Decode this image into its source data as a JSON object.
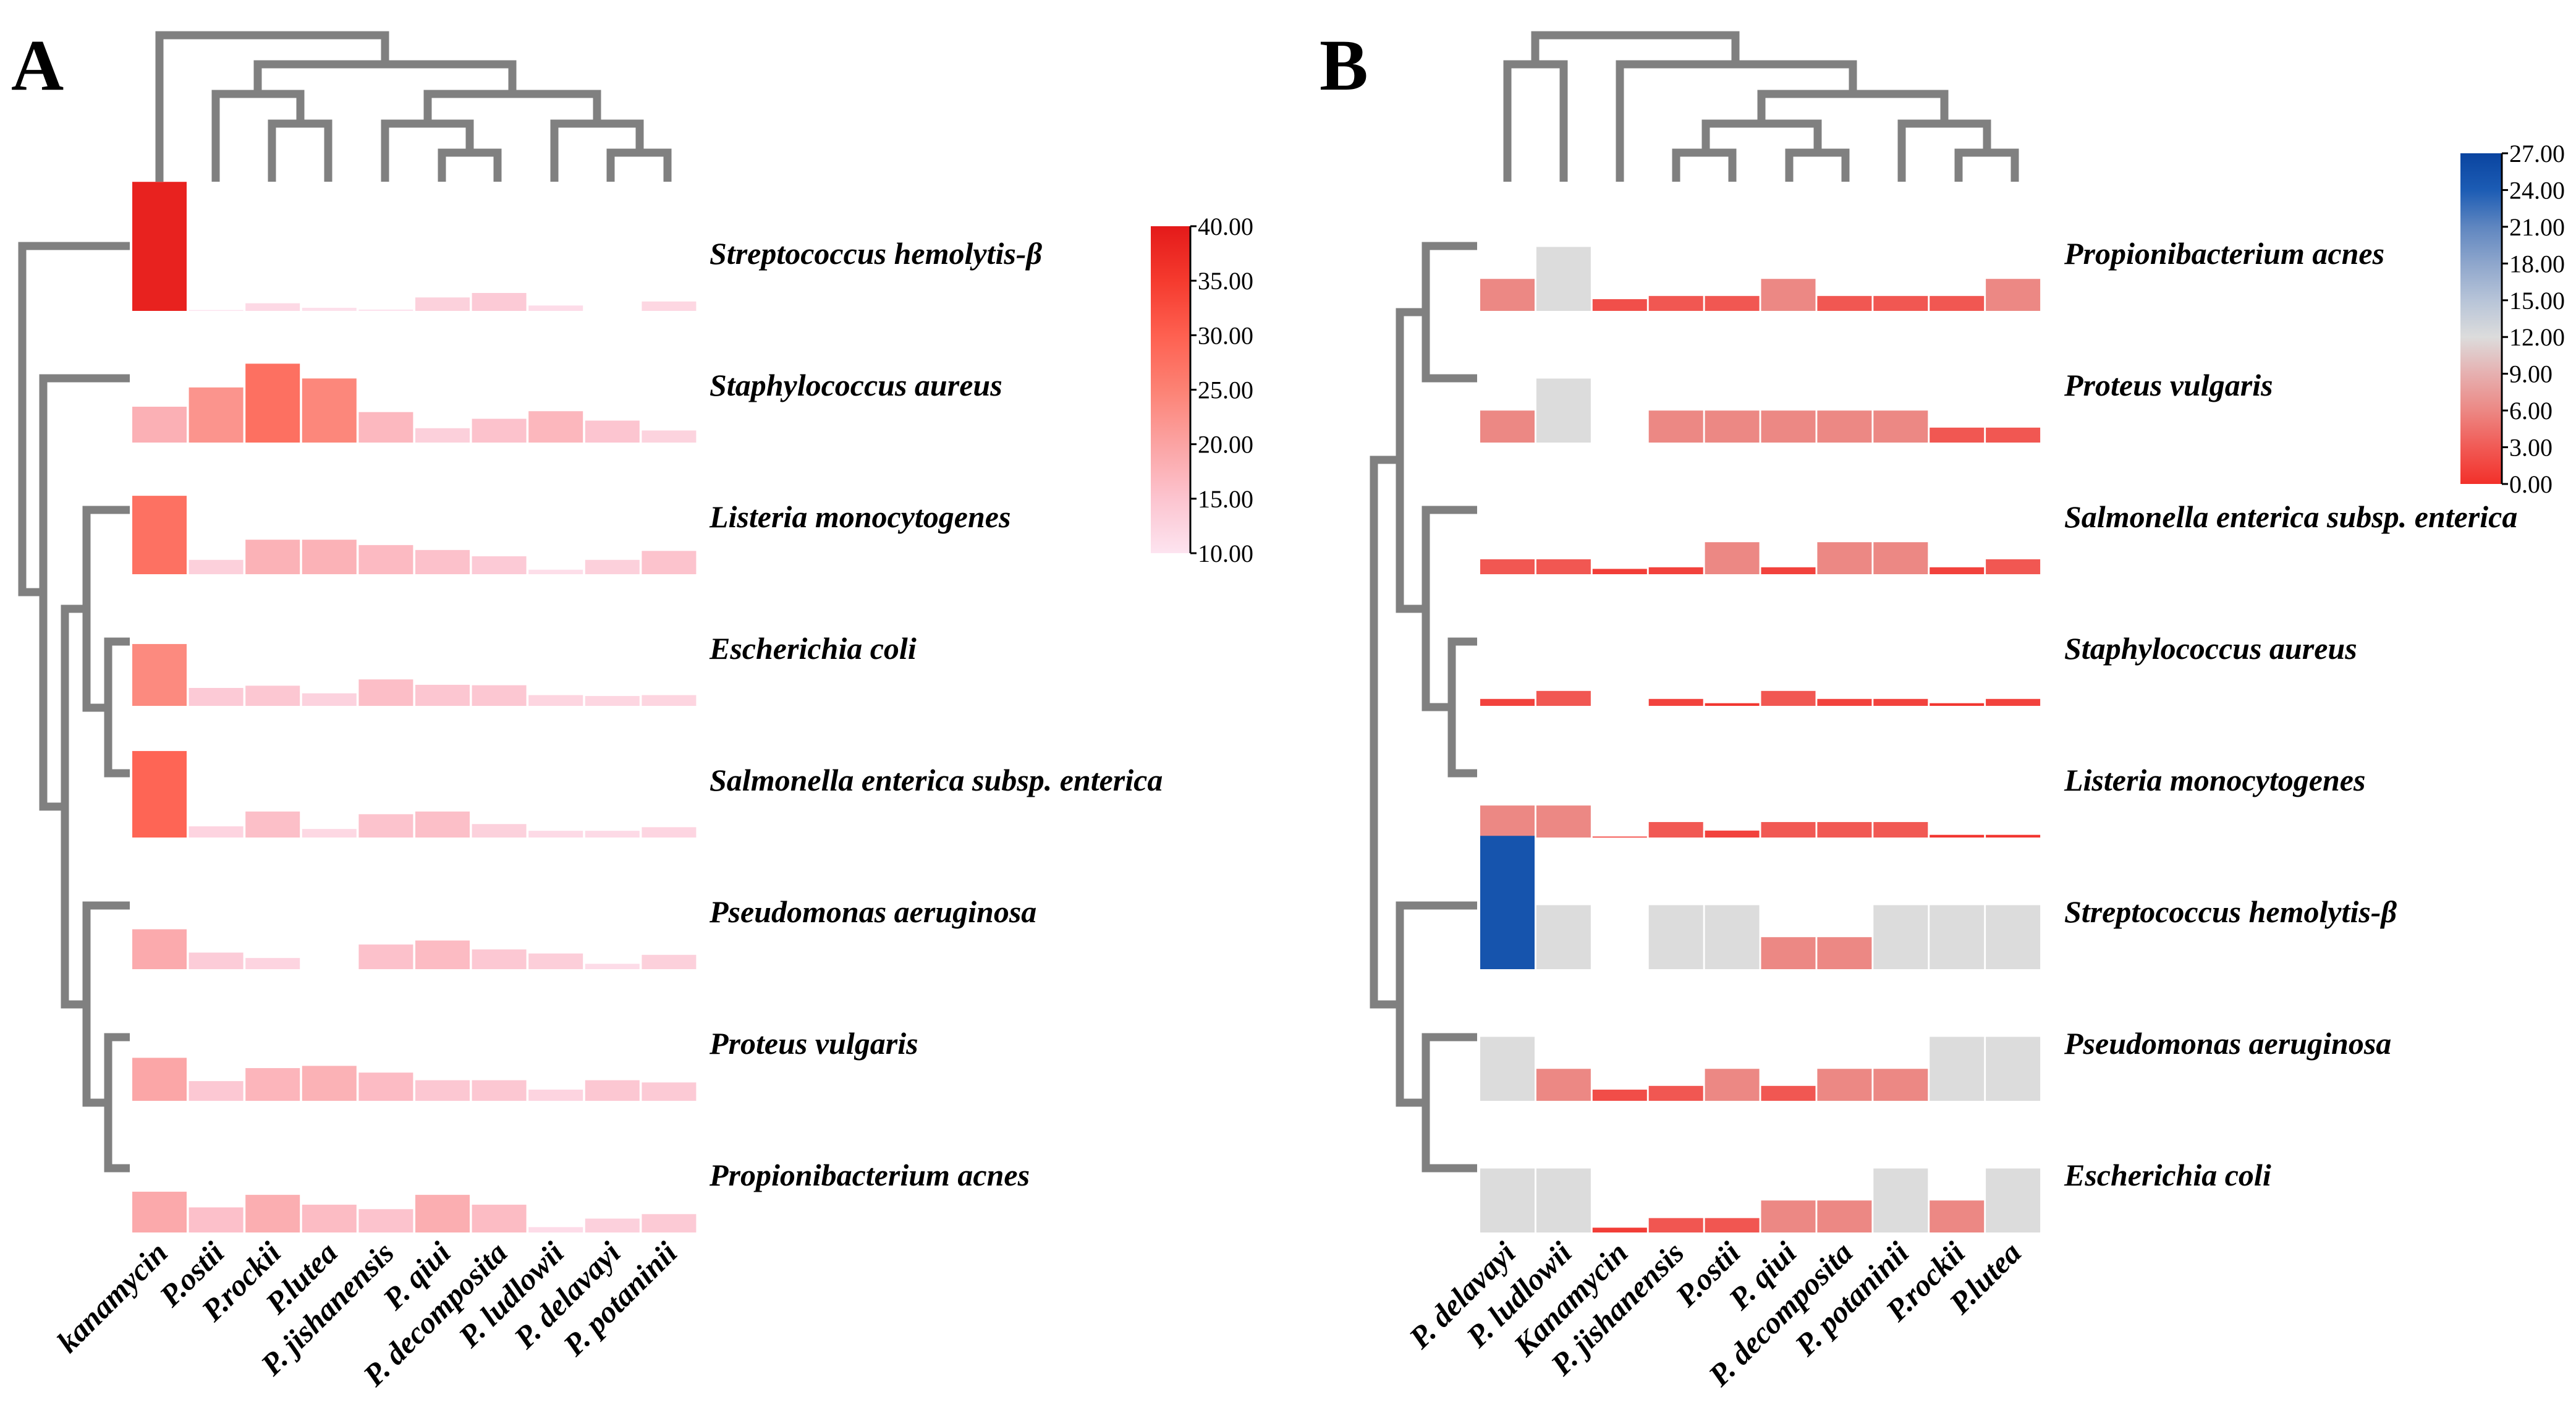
{
  "chart_data": [
    {
      "type": "heatmap",
      "panel_label": "A",
      "description_kind": "clustered heat map with bar heights",
      "columns": [
        "kanamycin",
        "P.ostii",
        "P.rockii",
        "P.lutea",
        "P. jishanensis",
        "P. qiui",
        "P. decomposita",
        "P. ludlowii",
        "P. delavayi",
        "P. potaninii"
      ],
      "rows": [
        {
          "name": "Streptococcus hemolytis-β",
          "values": [
            38.8,
            10.2,
            11.7,
            10.7,
            10.3,
            13.0,
            14.0,
            11.2,
            null,
            12.1
          ]
        },
        {
          "name": "Staphylococcus aureus",
          "values": [
            18.0,
            22.3,
            27.6,
            24.3,
            16.8,
            13.2,
            15.3,
            17.0,
            14.9,
            12.7
          ]
        },
        {
          "name": "Listeria monocytogenes",
          "values": [
            27.5,
            13.2,
            17.7,
            17.7,
            16.5,
            15.4,
            14.0,
            11.0,
            13.2,
            15.2
          ]
        },
        {
          "name": "Escherichia coli",
          "values": [
            23.8,
            14.0,
            14.5,
            12.8,
            15.9,
            14.7,
            14.6,
            12.4,
            12.2,
            12.4
          ]
        },
        {
          "name": "Salmonella enterica subsp. enterica",
          "values": [
            29.3,
            12.5,
            15.8,
            11.9,
            15.2,
            15.8,
            13.0,
            11.5,
            11.5,
            12.3
          ]
        },
        {
          "name": "Pseudomonas aeruginosa",
          "values": [
            18.9,
            13.7,
            12.5,
            null,
            15.5,
            16.4,
            14.4,
            13.5,
            11.2,
            13.2
          ]
        },
        {
          "name": "Proteus vulgaris",
          "values": [
            19.6,
            14.4,
            17.3,
            17.8,
            16.3,
            14.6,
            14.6,
            12.5,
            14.6,
            14.1
          ]
        },
        {
          "name": "Propionibacterium acnes",
          "values": [
            19.1,
            15.6,
            18.4,
            16.2,
            15.2,
            18.4,
            16.2,
            11.2,
            13.1,
            14.1
          ]
        }
      ],
      "colorbar": {
        "range": [
          10,
          40
        ],
        "ticks": [
          "40.00",
          "35.00",
          "30.00",
          "25.00",
          "20.00",
          "15.00",
          "10.00"
        ],
        "tick_values": [
          40,
          35,
          30,
          25,
          20,
          15,
          10
        ],
        "stops": [
          {
            "value": 10,
            "color": "#fde4f0"
          },
          {
            "value": 15,
            "color": "#fcc4cf"
          },
          {
            "value": 20,
            "color": "#fba3a3"
          },
          {
            "value": 25,
            "color": "#fc8274"
          },
          {
            "value": 30,
            "color": "#fe6050"
          },
          {
            "value": 35,
            "color": "#f53a2e"
          },
          {
            "value": 40,
            "color": "#e41a1a"
          }
        ]
      },
      "dendrograms": {
        "rows": true,
        "columns": true
      }
    },
    {
      "type": "heatmap",
      "panel_label": "B",
      "description_kind": "clustered heat map with bar heights",
      "columns": [
        "P. delavayi",
        "P. ludlowii",
        "Kanamycin",
        "P. jishanensis",
        "P.ostii",
        "P. qiui",
        "P. decomposita",
        "P. potaninii",
        "P.rockii",
        "P.lutea"
      ],
      "rows": [
        {
          "name": "Propionibacterium acnes",
          "values": [
            6,
            12,
            2.2,
            2.8,
            2.8,
            6,
            2.8,
            2.8,
            2.8,
            6
          ]
        },
        {
          "name": "Proteus vulgaris",
          "values": [
            6,
            12,
            null,
            6,
            6,
            6,
            6,
            6,
            2.8,
            2.8
          ]
        },
        {
          "name": "Salmonella enterica subsp. enterica",
          "values": [
            2.8,
            2.8,
            1.0,
            1.3,
            6,
            1.3,
            6,
            6,
            1.3,
            2.8
          ]
        },
        {
          "name": "Staphylococcus aureus",
          "values": [
            1.3,
            2.8,
            null,
            1.3,
            0.5,
            2.8,
            1.3,
            1.3,
            0.5,
            1.3
          ]
        },
        {
          "name": "Listeria monocytogenes",
          "values": [
            6,
            6,
            0.1,
            2.9,
            1.3,
            2.9,
            2.9,
            2.9,
            0.5,
            0.5
          ]
        },
        {
          "name": "Streptococcus hemolytis-β",
          "values": [
            25,
            12,
            null,
            12,
            12,
            6,
            6,
            12,
            12,
            12
          ]
        },
        {
          "name": "Pseudomonas aeruginosa",
          "values": [
            12,
            6,
            2.1,
            2.8,
            6,
            2.8,
            6,
            6,
            12,
            12
          ]
        },
        {
          "name": "Escherichia coli",
          "values": [
            12,
            12,
            0.9,
            2.7,
            2.7,
            6,
            6,
            12,
            6,
            12
          ]
        }
      ],
      "colorbar": {
        "range": [
          0,
          27
        ],
        "ticks": [
          "27.00",
          "24.00",
          "21.00",
          "18.00",
          "15.00",
          "12.00",
          "9.00",
          "6.00",
          "3.00",
          "0.00"
        ],
        "tick_values": [
          27,
          24,
          21,
          18,
          15,
          12,
          9,
          6,
          3,
          0
        ],
        "stops": [
          {
            "value": 0,
            "color": "#f2302a"
          },
          {
            "value": 3,
            "color": "#f15a55"
          },
          {
            "value": 6,
            "color": "#ec8884"
          },
          {
            "value": 9,
            "color": "#e6b0b0"
          },
          {
            "value": 12,
            "color": "#dcdcdc"
          },
          {
            "value": 15,
            "color": "#b7c4d8"
          },
          {
            "value": 18,
            "color": "#8ea6cc"
          },
          {
            "value": 21,
            "color": "#5f86c0"
          },
          {
            "value": 24,
            "color": "#1c5cb4"
          },
          {
            "value": 27,
            "color": "#0a44a0"
          }
        ]
      },
      "dendrograms": {
        "rows": true,
        "columns": true
      }
    }
  ]
}
